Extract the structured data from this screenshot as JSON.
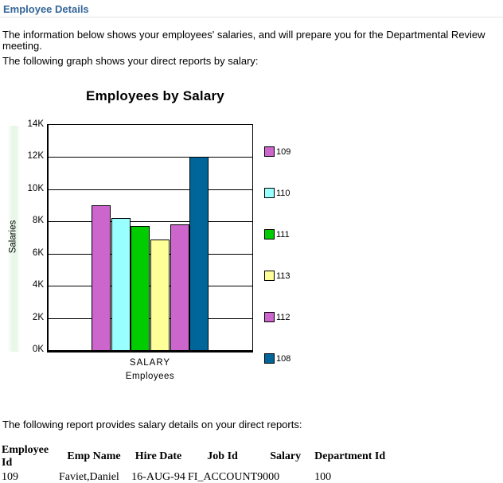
{
  "page": {
    "heading": "Employee Details",
    "para1": "The information below shows your employees' salaries, and will prepare you for the Departmental Review meeting.",
    "para2": "The following graph shows your direct reports by salary:",
    "para3": "The following report provides salary details on your direct reports:"
  },
  "chart_data": {
    "type": "bar",
    "title": "Employees by Salary",
    "xlabel": "Employees",
    "ylabel": "Salaries",
    "category_label": "SALARY",
    "ylim": [
      0,
      14000
    ],
    "ytick_labels": [
      "0K",
      "2K",
      "4K",
      "6K",
      "8K",
      "10K",
      "12K",
      "14K"
    ],
    "grid": true,
    "legend_position": "right",
    "series": [
      {
        "name": "109",
        "value": 9000,
        "color": "#cc66cc"
      },
      {
        "name": "110",
        "value": 8200,
        "color": "#99ffff"
      },
      {
        "name": "111",
        "value": 7700,
        "color": "#00cc00"
      },
      {
        "name": "113",
        "value": 6900,
        "color": "#ffff99"
      },
      {
        "name": "112",
        "value": 7800,
        "color": "#cc66cc"
      },
      {
        "name": "108",
        "value": 12000,
        "color": "#006699"
      }
    ]
  },
  "report_table": {
    "headers": [
      "Employee Id",
      "Emp Name",
      "Hire Date",
      "Job Id",
      "Salary",
      "Department Id"
    ],
    "rows": [
      [
        "109",
        "Faviet,Daniel",
        "16-AUG-94",
        "FI_ACCOUNT",
        "9000",
        "100"
      ]
    ]
  }
}
